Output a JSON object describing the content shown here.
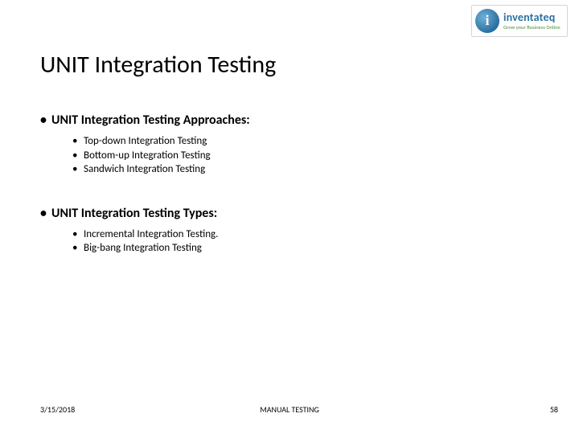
{
  "logo": {
    "name": "inventateq",
    "tagline": "Grow your Business Online",
    "border_color": "#cfd6dc",
    "mark_gradient_from": "#6fb0d8",
    "mark_gradient_to": "#2a6fa0",
    "name_color": "#2a6fa0",
    "tagline_color": "#4a8a3a"
  },
  "title": {
    "text": "UNIT Integration Testing",
    "fontsize": 30,
    "color": "#000000"
  },
  "sections": [
    {
      "heading": "UNIT Integration Testing Approaches:",
      "items": [
        "Top-down Integration Testing",
        "Bottom-up Integration Testing",
        "Sandwich Integration Testing"
      ]
    },
    {
      "heading": "UNIT Integration Testing Types:",
      "items": [
        "Incremental Integration Testing.",
        "Big-bang Integration Testing"
      ]
    }
  ],
  "footer": {
    "date": "3/15/2018",
    "center": "MANUAL TESTING",
    "page": "58"
  },
  "style": {
    "background": "#ffffff",
    "body_font": "Calibri",
    "l1_fontsize": 16,
    "l1_weight": 700,
    "l2_fontsize": 13,
    "l2_weight": 400,
    "footer_fontsize": 10,
    "bullet_char": "•"
  }
}
